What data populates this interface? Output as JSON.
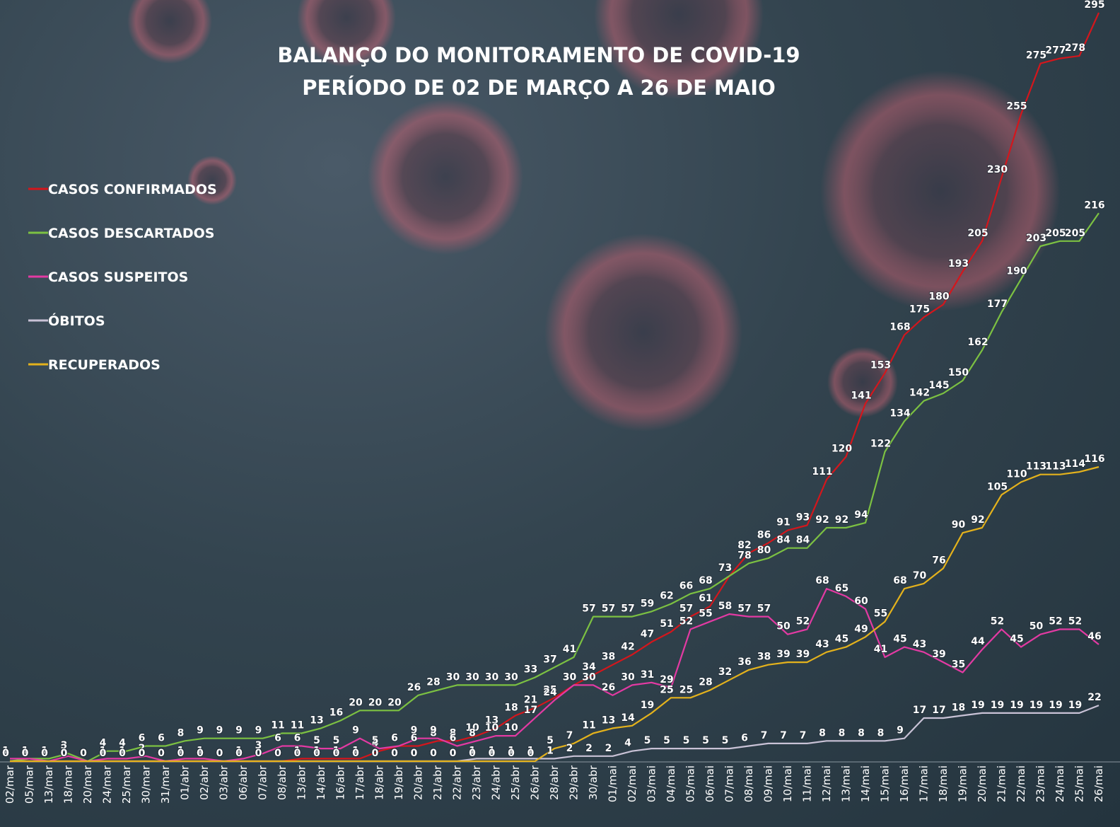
{
  "chart_data": {
    "type": "line",
    "title": "BALANÇO DO MONITORAMENTO DE COVID-19",
    "subtitle": "PERÍODO DE 02 DE MARÇO A 26 DE MAIO",
    "categories": [
      "02/mar",
      "05/mar",
      "13/mar",
      "18/mar",
      "20/mar",
      "24/mar",
      "25/mar",
      "30/mar",
      "31/mar",
      "01/abr",
      "02/abr",
      "03/abr",
      "06/abr",
      "07/abr",
      "08/abr",
      "13/abr",
      "14/abr",
      "16/abr",
      "17/abr",
      "18/abr",
      "19/abr",
      "20/abr",
      "21/abr",
      "22/abr",
      "23/abr",
      "24/abr",
      "25/abr",
      "26/abr",
      "28/abr",
      "29/abr",
      "30/abr",
      "01/mai",
      "02/mai",
      "03/mai",
      "04/mai",
      "05/mai",
      "06/mai",
      "07/mai",
      "08/mai",
      "09/mai",
      "10/mai",
      "11/mai",
      "12/mai",
      "13/mai",
      "14/mai",
      "15/mai",
      "16/mai",
      "17/mai",
      "18/mai",
      "19/mai",
      "20/mai",
      "21/mai",
      "22/mai",
      "23/mai",
      "24/mai",
      "25/mai",
      "26/mai"
    ],
    "series": [
      {
        "name": "CASOS CONFIRMADOS",
        "color": "#d4161c",
        "values": [
          0,
          0,
          0,
          0,
          0,
          0,
          0,
          0,
          0,
          0,
          0,
          0,
          0,
          0,
          0,
          1,
          1,
          1,
          1,
          4,
          6,
          6,
          8,
          8,
          10,
          13,
          18,
          21,
          25,
          30,
          34,
          38,
          42,
          47,
          51,
          57,
          61,
          73,
          82,
          86,
          91,
          93,
          111,
          120,
          141,
          153,
          168,
          175,
          180,
          193,
          205,
          230,
          255,
          275,
          277,
          278,
          295
        ]
      },
      {
        "name": "CASOS DESCARTADOS",
        "color": "#7cc142",
        "values": [
          0,
          1,
          1,
          3,
          0,
          4,
          4,
          6,
          6,
          8,
          9,
          9,
          9,
          9,
          11,
          11,
          13,
          16,
          20,
          20,
          20,
          26,
          28,
          30,
          30,
          30,
          30,
          33,
          37,
          41,
          57,
          57,
          57,
          59,
          62,
          66,
          68,
          73,
          78,
          80,
          84,
          84,
          92,
          92,
          94,
          122,
          134,
          142,
          145,
          150,
          162,
          177,
          190,
          203,
          205,
          205,
          216
        ]
      },
      {
        "name": "CASOS SUSPEITOS",
        "color": "#e33aa3",
        "values": [
          1,
          1,
          0,
          2,
          0,
          1,
          1,
          2,
          0,
          1,
          1,
          0,
          1,
          3,
          6,
          6,
          5,
          5,
          9,
          5,
          6,
          9,
          9,
          6,
          8,
          10,
          10,
          17,
          24,
          30,
          30,
          26,
          30,
          31,
          29,
          52,
          55,
          58,
          57,
          57,
          50,
          52,
          68,
          65,
          60,
          41,
          45,
          43,
          39,
          35,
          44,
          52,
          45,
          50,
          52,
          52,
          46
        ]
      },
      {
        "name": "ÓBITOS",
        "color": "#c9c2d6",
        "values": [
          0,
          0,
          0,
          0,
          0,
          0,
          0,
          0,
          0,
          0,
          0,
          0,
          0,
          0,
          0,
          0,
          0,
          0,
          0,
          0,
          0,
          0,
          0,
          0,
          1,
          1,
          1,
          1,
          1,
          2,
          2,
          2,
          4,
          5,
          5,
          5,
          5,
          5,
          6,
          7,
          7,
          7,
          8,
          8,
          8,
          8,
          9,
          17,
          17,
          18,
          19,
          19,
          19,
          19,
          19,
          19,
          22
        ]
      },
      {
        "name": "RECUPERADOS",
        "color": "#e4b21c",
        "values": [
          0,
          0,
          0,
          0,
          0,
          0,
          0,
          0,
          0,
          0,
          0,
          0,
          0,
          0,
          0,
          0,
          0,
          0,
          0,
          0,
          0,
          0,
          0,
          0,
          0,
          0,
          0,
          0,
          5,
          7,
          11,
          13,
          14,
          19,
          25,
          25,
          28,
          32,
          36,
          38,
          39,
          39,
          43,
          45,
          49,
          55,
          68,
          70,
          76,
          90,
          92,
          105,
          110,
          113,
          113,
          114,
          116
        ]
      }
    ]
  }
}
